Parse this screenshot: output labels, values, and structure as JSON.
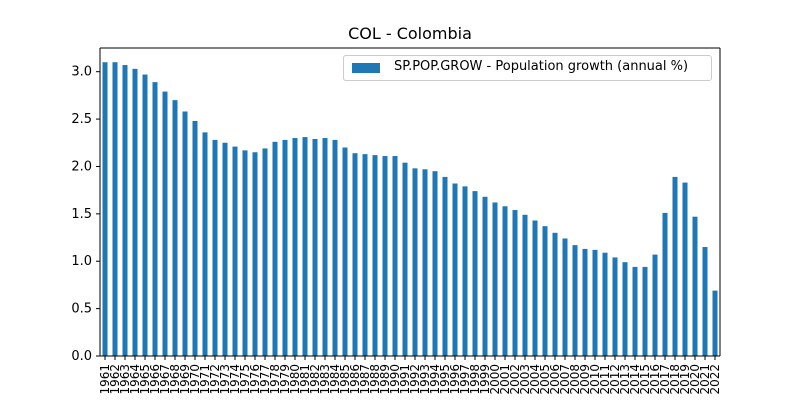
{
  "chart_data": {
    "type": "bar",
    "title": "COL - Colombia",
    "xlabel": "",
    "ylabel": "",
    "ylim": [
      0,
      3.25
    ],
    "yticks": [
      "0.0",
      "0.5",
      "1.0",
      "1.5",
      "2.0",
      "2.5",
      "3.0"
    ],
    "grid": false,
    "legend_position": "top-right",
    "bar_color": "#1f77b4",
    "categories": [
      "1961",
      "1962",
      "1963",
      "1964",
      "1965",
      "1966",
      "1967",
      "1968",
      "1969",
      "1970",
      "1971",
      "1972",
      "1973",
      "1974",
      "1975",
      "1976",
      "1977",
      "1978",
      "1979",
      "1980",
      "1981",
      "1982",
      "1983",
      "1984",
      "1985",
      "1986",
      "1987",
      "1988",
      "1989",
      "1990",
      "1991",
      "1992",
      "1993",
      "1994",
      "1995",
      "1996",
      "1997",
      "1998",
      "1999",
      "2000",
      "2001",
      "2002",
      "2003",
      "2004",
      "2005",
      "2006",
      "2007",
      "2008",
      "2009",
      "2010",
      "2011",
      "2012",
      "2013",
      "2014",
      "2015",
      "2016",
      "2017",
      "2018",
      "2019",
      "2020",
      "2021",
      "2022"
    ],
    "series": [
      {
        "name": "SP.POP.GROW - Population growth (annual %)",
        "values": [
          3.1,
          3.1,
          3.07,
          3.03,
          2.97,
          2.89,
          2.79,
          2.7,
          2.58,
          2.48,
          2.36,
          2.28,
          2.25,
          2.21,
          2.17,
          2.15,
          2.19,
          2.26,
          2.28,
          2.3,
          2.31,
          2.29,
          2.3,
          2.28,
          2.2,
          2.14,
          2.13,
          2.12,
          2.11,
          2.11,
          2.04,
          1.98,
          1.97,
          1.95,
          1.89,
          1.82,
          1.79,
          1.74,
          1.68,
          1.62,
          1.58,
          1.54,
          1.49,
          1.43,
          1.37,
          1.3,
          1.24,
          1.17,
          1.13,
          1.12,
          1.09,
          1.04,
          0.99,
          0.94,
          0.94,
          1.07,
          1.51,
          1.89,
          1.83,
          1.47,
          1.15,
          0.69
        ]
      }
    ]
  }
}
